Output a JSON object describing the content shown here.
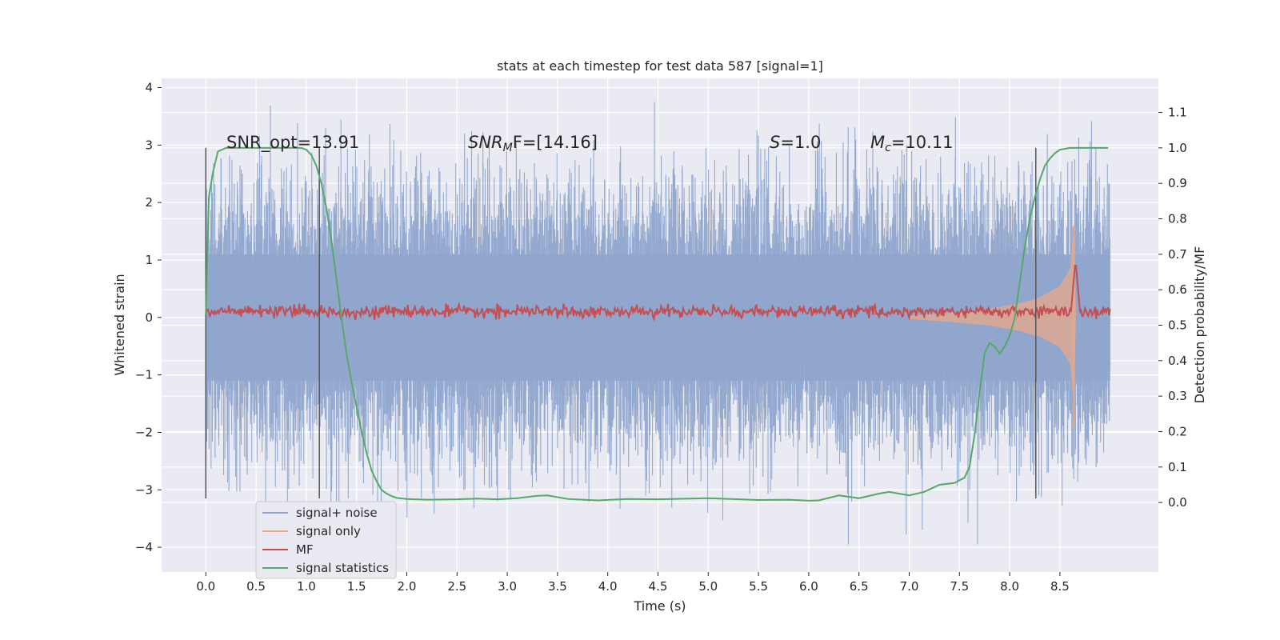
{
  "chart_data": {
    "type": "line",
    "title": "stats at each timestep for test data 587 [signal=1]",
    "xlabel": "Time (s)",
    "ylabel": "Whitened strain",
    "ylabel_right": "Detection probability/MF",
    "xlim": [
      -0.44,
      9.48
    ],
    "ylim": [
      -4.43,
      4.16
    ],
    "ylim_right": [
      -0.196,
      1.196
    ],
    "xticks": [
      "0.0",
      "0.5",
      "1.0",
      "1.5",
      "2.0",
      "2.5",
      "3.0",
      "3.5",
      "4.0",
      "4.5",
      "5.0",
      "5.5",
      "6.0",
      "6.5",
      "7.0",
      "7.5",
      "8.0",
      "8.5"
    ],
    "yticks": [
      "4",
      "3",
      "2",
      "1",
      "0",
      "−1",
      "−2",
      "−3",
      "−4"
    ],
    "yticks_right": [
      "1.1",
      "1.0",
      "0.9",
      "0.8",
      "0.7",
      "0.6",
      "0.5",
      "0.4",
      "0.3",
      "0.2",
      "0.1",
      "0.0"
    ],
    "grid": true,
    "legend_position": "lower-left",
    "annotations": {
      "snr_opt": "SNR_opt=13.91",
      "snr_mf_base": "SNR",
      "snr_mf_sub": "M",
      "snr_mf_rest": "F=[14.16]",
      "s_base": "S",
      "s_rest": "=1.0",
      "mc_base": "M",
      "mc_sub": "c",
      "mc_rest": "=10.11"
    },
    "series": [
      {
        "name": "signal+ noise",
        "color": "#8fa5cc",
        "description_values": {
          "envelope_min": -4.0,
          "envelope_max": 3.8
        }
      },
      {
        "name": "signal only",
        "color": "#e8a88a",
        "envelope": {
          "t": [
            7.0,
            7.4,
            7.8,
            8.1,
            8.3,
            8.5,
            8.6,
            8.64,
            8.66
          ],
          "amp": [
            0.03,
            0.08,
            0.15,
            0.25,
            0.35,
            0.55,
            0.85,
            1.6,
            0.0
          ]
        }
      },
      {
        "name": "MF",
        "color": "#c44e52",
        "level": 0.1,
        "peak": {
          "x": 8.66,
          "y": 1.0
        }
      },
      {
        "name": "signal statistics",
        "color": "#55a868",
        "x": [
          0.0,
          0.03,
          0.07,
          0.12,
          0.2,
          0.3,
          0.5,
          0.7,
          0.85,
          0.95,
          1.0,
          1.05,
          1.1,
          1.15,
          1.2,
          1.25,
          1.3,
          1.35,
          1.4,
          1.45,
          1.5,
          1.55,
          1.6,
          1.65,
          1.7,
          1.75,
          1.8,
          1.85,
          1.9,
          2.0,
          2.2,
          2.5,
          2.7,
          2.9,
          3.1,
          3.3,
          3.4,
          3.6,
          3.9,
          4.2,
          4.5,
          5.0,
          5.5,
          5.8,
          6.0,
          6.1,
          6.3,
          6.5,
          6.7,
          6.8,
          7.0,
          7.15,
          7.3,
          7.45,
          7.55,
          7.6,
          7.65,
          7.7,
          7.75,
          7.8,
          7.85,
          7.9,
          7.95,
          8.0,
          8.05,
          8.1,
          8.15,
          8.2,
          8.25,
          8.3,
          8.35,
          8.4,
          8.45,
          8.5,
          8.6,
          8.7,
          8.8,
          8.9,
          8.98
        ],
        "values": [
          0.53,
          0.86,
          0.93,
          0.99,
          1.0,
          1.0,
          1.0,
          1.0,
          1.0,
          1.0,
          0.995,
          0.98,
          0.95,
          0.9,
          0.83,
          0.74,
          0.63,
          0.52,
          0.42,
          0.34,
          0.27,
          0.2,
          0.14,
          0.09,
          0.06,
          0.035,
          0.025,
          0.018,
          0.013,
          0.01,
          0.008,
          0.009,
          0.011,
          0.009,
          0.012,
          0.019,
          0.02,
          0.01,
          0.006,
          0.01,
          0.009,
          0.012,
          0.007,
          0.008,
          0.005,
          0.006,
          0.02,
          0.012,
          0.025,
          0.03,
          0.02,
          0.03,
          0.05,
          0.055,
          0.07,
          0.1,
          0.19,
          0.31,
          0.42,
          0.45,
          0.44,
          0.42,
          0.44,
          0.47,
          0.52,
          0.62,
          0.72,
          0.8,
          0.86,
          0.91,
          0.95,
          0.97,
          0.985,
          0.995,
          1.0,
          1.0,
          1.0,
          1.0,
          1.0
        ]
      },
      {
        "name": "markers",
        "color": "#555555",
        "x": [
          0.0,
          1.13,
          8.26
        ]
      }
    ]
  }
}
